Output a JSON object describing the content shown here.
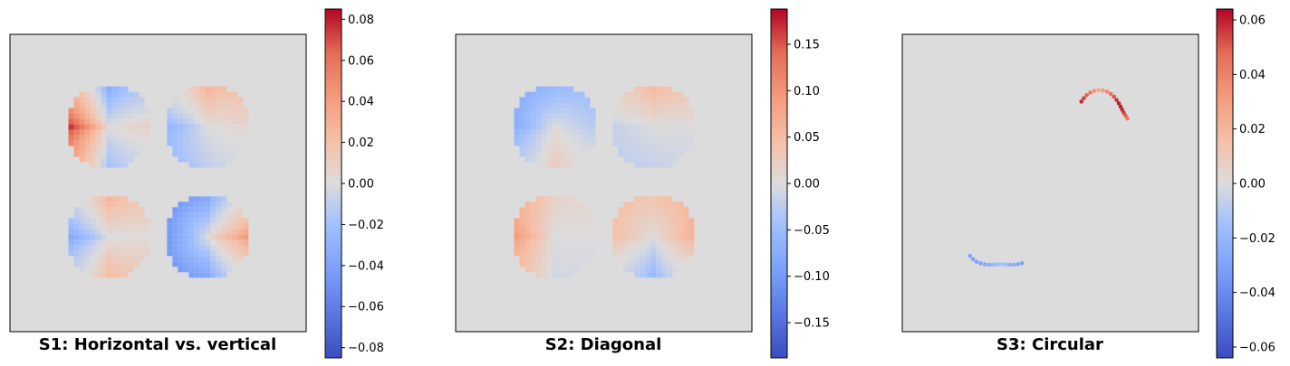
{
  "chart_data": [
    {
      "type": "heatmap",
      "title": "S1: Horizontal vs. vertical",
      "colormap": "coolwarm",
      "axes": "off",
      "background_value": 0,
      "colorbar": {
        "range": [
          -0.085,
          0.085
        ],
        "ticks": [
          0.08,
          0.06,
          0.04,
          0.02,
          0.0,
          -0.02,
          -0.04,
          -0.06,
          -0.08
        ],
        "tick_labels": [
          "0.08",
          "0.06",
          "0.04",
          "0.02",
          "0.00",
          "−0.02",
          "−0.04",
          "−0.06",
          "−0.08"
        ]
      },
      "regions": [
        {
          "quadrant": "top-left",
          "values": {
            "left": 0.085,
            "right": 0.01,
            "top": -0.035,
            "bottom": -0.02
          }
        },
        {
          "quadrant": "top-right",
          "values": {
            "left": -0.03,
            "right": 0.005,
            "top": 0.03,
            "bottom": -0.01
          }
        },
        {
          "quadrant": "bottom-left",
          "values": {
            "left": -0.04,
            "right": 0.0,
            "top": 0.03,
            "bottom": 0.025
          }
        },
        {
          "quadrant": "bottom-right",
          "values": {
            "left": -0.05,
            "right": 0.045,
            "top": -0.04,
            "bottom": -0.04
          }
        }
      ]
    },
    {
      "type": "heatmap",
      "title": "S2: Diagonal",
      "colormap": "coolwarm",
      "axes": "off",
      "background_value": 0,
      "colorbar": {
        "range": [
          -0.188,
          0.188
        ],
        "ticks": [
          0.15,
          0.1,
          0.05,
          0.0,
          -0.05,
          -0.1,
          -0.15
        ],
        "tick_labels": [
          "0.15",
          "0.10",
          "0.05",
          "0.00",
          "−0.05",
          "−0.10",
          "−0.15"
        ]
      },
      "regions": [
        {
          "quadrant": "top-left",
          "values": {
            "left": -0.08,
            "right": -0.03,
            "top": -0.06,
            "bottom": 0.03
          }
        },
        {
          "quadrant": "top-right",
          "values": {
            "left": -0.02,
            "right": 0.0,
            "top": 0.06,
            "bottom": -0.02
          }
        },
        {
          "quadrant": "bottom-left",
          "values": {
            "left": 0.1,
            "right": 0.0,
            "top": 0.02,
            "bottom": -0.01
          }
        },
        {
          "quadrant": "bottom-right",
          "values": {
            "left": 0.05,
            "right": 0.07,
            "top": 0.04,
            "bottom": -0.06
          }
        }
      ]
    },
    {
      "type": "heatmap",
      "title": "S3: Circular",
      "colormap": "coolwarm",
      "axes": "off",
      "background_value": 0,
      "colorbar": {
        "range": [
          -0.064,
          0.064
        ],
        "ticks": [
          0.06,
          0.04,
          0.02,
          0.0,
          -0.02,
          -0.04,
          -0.06
        ],
        "tick_labels": [
          "0.06",
          "0.04",
          "0.02",
          "0.00",
          "−0.02",
          "−0.04",
          "−0.06"
        ]
      },
      "regions": [
        {
          "quadrant": "top-right",
          "values": {
            "arc": 0.06
          }
        },
        {
          "quadrant": "bottom-left",
          "values": {
            "arc": -0.03
          }
        }
      ]
    }
  ]
}
